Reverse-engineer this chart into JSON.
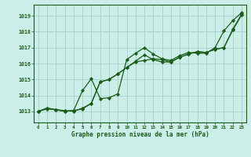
{
  "title": "Graphe pression niveau de la mer (hPa)",
  "bg_color": "#cceee8",
  "grid_color": "#aad4cc",
  "line_color": "#1a5c1a",
  "marker_color": "#1a5c1a",
  "xlim": [
    -0.5,
    23.5
  ],
  "ylim": [
    1012.3,
    1019.7
  ],
  "yticks": [
    1013,
    1014,
    1015,
    1016,
    1017,
    1018,
    1019
  ],
  "xticks": [
    0,
    1,
    2,
    3,
    4,
    5,
    6,
    7,
    8,
    9,
    10,
    11,
    12,
    13,
    14,
    15,
    16,
    17,
    18,
    19,
    20,
    21,
    22,
    23
  ],
  "series1": [
    1013.0,
    1013.2,
    1013.1,
    1013.0,
    1013.05,
    1014.3,
    1015.05,
    1013.8,
    1013.85,
    1014.1,
    1016.25,
    1016.65,
    1017.0,
    1016.6,
    1016.3,
    1016.2,
    1016.5,
    1016.7,
    1016.65,
    1016.65,
    1017.0,
    1018.05,
    1018.7,
    1019.2
  ],
  "series2": [
    1013.0,
    1013.2,
    1013.1,
    1013.05,
    1013.0,
    1013.2,
    1013.5,
    1014.85,
    1015.0,
    1015.35,
    1015.75,
    1016.15,
    1016.55,
    1016.25,
    1016.1,
    1016.1,
    1016.4,
    1016.6,
    1016.75,
    1016.7,
    1016.9,
    1017.0,
    1018.1,
    1019.05
  ],
  "series3": [
    1013.0,
    1013.15,
    1013.1,
    1013.0,
    1013.05,
    1013.15,
    1013.5,
    1014.85,
    1015.0,
    1015.35,
    1015.75,
    1016.1,
    1016.2,
    1016.3,
    1016.25,
    1016.1,
    1016.4,
    1016.6,
    1016.75,
    1016.7,
    1016.9,
    1017.0,
    1018.15,
    1019.1
  ]
}
